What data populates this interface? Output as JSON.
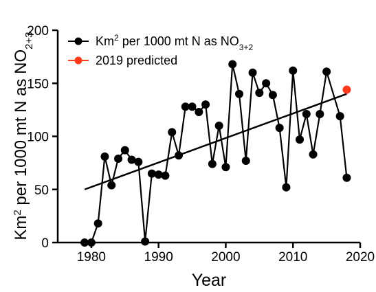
{
  "chart_data": {
    "type": "scatter",
    "xlabel": "Year",
    "ylabel": {
      "base": "Km",
      "sup": "2",
      "rest": " per 1000 mt N as NO",
      "sub": "2+3"
    },
    "xlim": [
      1975,
      2020
    ],
    "ylim": [
      0,
      200
    ],
    "x_ticks": [
      1980,
      1990,
      2000,
      2010,
      2020
    ],
    "y_ticks": [
      0,
      50,
      100,
      150,
      200
    ],
    "grid": false,
    "legend_position": "top-left",
    "series": [
      {
        "name": {
          "base": "Km",
          "sup": "2",
          "rest": " per 1000 mt N as NO",
          "sub": "3+2"
        },
        "color": "#000000",
        "style": "line-markers",
        "x": [
          1979,
          1980,
          1981,
          1982,
          1983,
          1984,
          1985,
          1986,
          1987,
          1988,
          1989,
          1990,
          1991,
          1992,
          1993,
          1994,
          1995,
          1996,
          1997,
          1998,
          1999,
          2000,
          2001,
          2002,
          2003,
          2004,
          2005,
          2006,
          2007,
          2008,
          2009,
          2010,
          2011,
          2012,
          2013,
          2014,
          2015,
          2016,
          2017,
          2018
        ],
        "y": [
          0,
          0,
          18,
          81,
          54,
          79,
          87,
          78,
          76,
          1,
          65,
          64,
          63,
          104,
          82,
          128,
          128,
          123,
          130,
          74,
          110,
          71,
          168,
          140,
          77,
          160,
          141,
          150,
          139,
          108,
          52,
          162,
          97,
          121,
          83,
          121,
          161,
          null,
          119,
          61
        ]
      },
      {
        "name": {
          "text": "2019 predicted"
        },
        "color": "#ff3a1c",
        "style": "marker",
        "x": [
          2018
        ],
        "y": [
          144
        ]
      }
    ],
    "trendline": {
      "x": [
        1979,
        2018
      ],
      "y": [
        50,
        140
      ],
      "color": "#000000"
    }
  }
}
